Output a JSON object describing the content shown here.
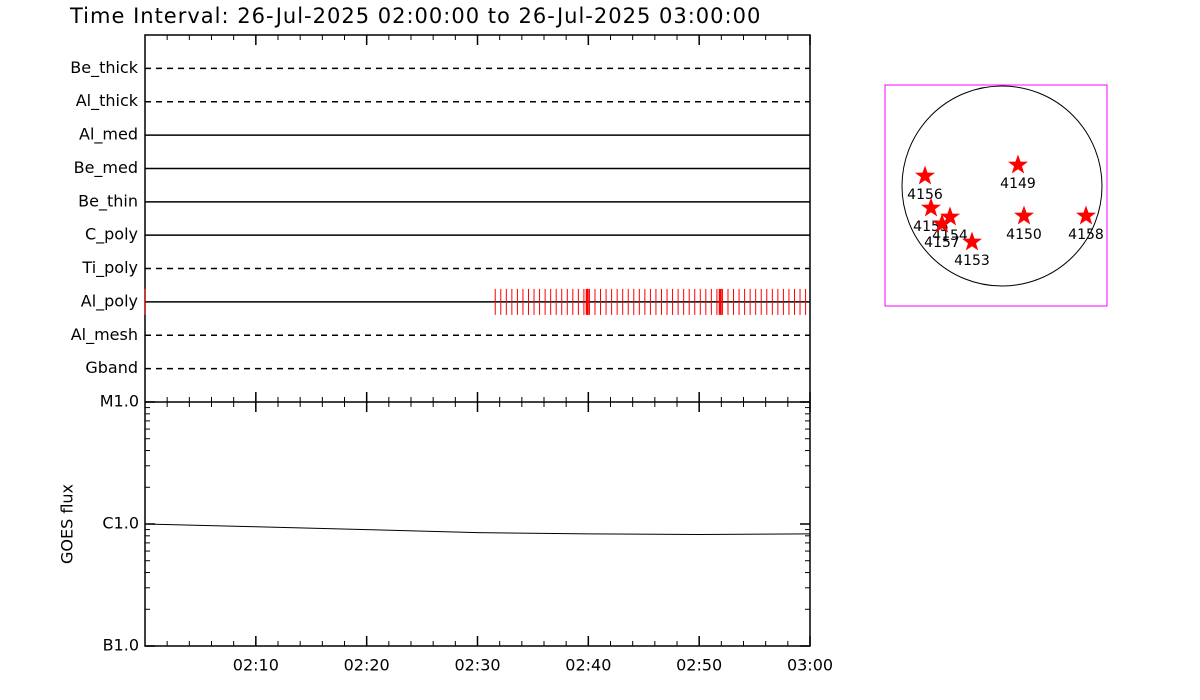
{
  "chart_data": [
    {
      "type": "timeline",
      "title": "Time Interval: 26-Jul-2025 02:00:00 to 26-Jul-2025 03:00:00",
      "categories": [
        "Be_thick",
        "Al_thick",
        "Al_med",
        "Be_med",
        "Be_thin",
        "C_poly",
        "Ti_poly",
        "Al_poly",
        "Al_mesh",
        "Gband"
      ],
      "line_styles": [
        "dashed",
        "dashed",
        "solid",
        "solid",
        "solid",
        "solid",
        "dashed",
        "solid",
        "dashed",
        "dashed"
      ],
      "xlim": [
        0,
        60
      ],
      "events": {
        "row": 7,
        "color": "#ff0000",
        "x": [
          0,
          31.6,
          32.1,
          32.6,
          33.1,
          33.6,
          34.1,
          34.6,
          35.1,
          35.6,
          36.1,
          36.6,
          37.1,
          37.6,
          38.1,
          38.6,
          39.1,
          39.6,
          40.1,
          40.6,
          41.1,
          41.6,
          42.1,
          42.6,
          43.1,
          43.6,
          44.1,
          44.6,
          45.1,
          45.6,
          46.1,
          46.6,
          47.1,
          47.6,
          48.1,
          48.6,
          49.1,
          49.6,
          50.1,
          50.6,
          51.1,
          51.6,
          52.1,
          52.6,
          53.1,
          53.6,
          54.1,
          54.6,
          55.1,
          55.6,
          56.1,
          56.6,
          57.1,
          57.6,
          58.1,
          58.6,
          59.1,
          59.6
        ],
        "long_x": [
          39.9,
          51.9
        ]
      }
    },
    {
      "type": "line",
      "ylabel": "GOES flux",
      "log": true,
      "x": [
        0,
        10,
        20,
        30,
        40,
        50,
        60
      ],
      "values": [
        1e-06,
        9.5e-07,
        9e-07,
        8.5e-07,
        8.3e-07,
        8.2e-07,
        8.3e-07
      ],
      "color": "#000000",
      "xlim": [
        0,
        60
      ],
      "xticks": [
        {
          "value": 10,
          "label": "02:10"
        },
        {
          "value": 20,
          "label": "02:20"
        },
        {
          "value": 30,
          "label": "02:30"
        },
        {
          "value": 40,
          "label": "02:40"
        },
        {
          "value": 50,
          "label": "02:50"
        },
        {
          "value": 60,
          "label": "03:00"
        }
      ],
      "ylim": [
        1e-07,
        1e-05
      ],
      "yticks": [
        {
          "value": 1e-07,
          "label": "B1.0"
        },
        {
          "value": 1e-06,
          "label": "C1.0"
        },
        {
          "value": 1e-05,
          "label": "M1.0"
        }
      ]
    },
    {
      "type": "scatter",
      "xlim": [
        -117,
        105
      ],
      "ylim": [
        -120,
        101
      ],
      "radius": 100,
      "color": "#ff0000",
      "frame_color": "#ff00ff",
      "points": [
        {
          "label": "4149",
          "x": 16,
          "y": 21
        },
        {
          "label": "4156",
          "x": -77,
          "y": 10
        },
        {
          "label": "4155",
          "x": -71,
          "y": -22
        },
        {
          "label": "4154",
          "x": -52,
          "y": -31
        },
        {
          "label": "4157",
          "x": -60,
          "y": -38
        },
        {
          "label": "4150",
          "x": 22,
          "y": -30
        },
        {
          "label": "4158",
          "x": 84,
          "y": -30
        },
        {
          "label": "4153",
          "x": -30,
          "y": -56
        }
      ]
    }
  ]
}
